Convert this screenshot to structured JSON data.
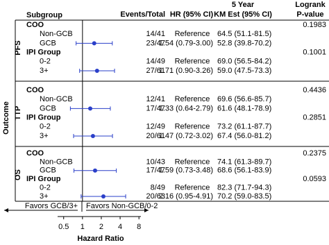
{
  "chart_data": {
    "type": "forest",
    "headers": {
      "subgroup": "Subgroup",
      "events": "Events/Total",
      "hr": "HR (95% CI)",
      "km_top": "5 Year",
      "km": "KM Est (95% CI)",
      "p_top": "Logrank",
      "p": "P-value"
    },
    "ylabel": "Outcome",
    "xlabel": "Hazard Ratio",
    "favors_left": "Favors GCB/3+",
    "favors_right": "Favors Non-GCB/0-2",
    "xlim": [
      0.4,
      8.6
    ],
    "xticks": [
      0.5,
      1,
      2,
      4,
      8
    ],
    "log_x": true,
    "reference": 1,
    "color": "#2a3fc9",
    "outcomes": [
      {
        "name": "PFS",
        "groups": [
          {
            "label": "COO",
            "p_value": 0.1983,
            "rows": [
              {
                "label": "Non-GCB",
                "events": "14/41",
                "hr_label": "Reference",
                "km": "64.5 (51.1-81.5)"
              },
              {
                "label": "GCB",
                "events": "23/47",
                "hr": 1.54,
                "ci_low": 0.79,
                "ci_high": 3.0,
                "hr_label": "1.54 (0.79-3.00)",
                "km": "52.8 (39.8-70.2)"
              }
            ]
          },
          {
            "label": "IPI Group",
            "p_value": 0.1001,
            "rows": [
              {
                "label": "0-2",
                "events": "14/49",
                "hr_label": "Reference",
                "km": "69.0 (56.5-84.2)"
              },
              {
                "label": "3+",
                "events": "27/61",
                "hr": 1.71,
                "ci_low": 0.9,
                "ci_high": 3.26,
                "hr_label": "1.71 (0.90-3.26)",
                "km": "59.0 (47.5-73.3)"
              }
            ]
          }
        ]
      },
      {
        "name": "TTP",
        "groups": [
          {
            "label": "COO",
            "p_value": 0.4436,
            "rows": [
              {
                "label": "Non-GCB",
                "events": "12/41",
                "hr_label": "Reference",
                "km": "69.6 (56.6-85.7)"
              },
              {
                "label": "GCB",
                "events": "17/47",
                "hr": 1.33,
                "ci_low": 0.64,
                "ci_high": 2.79,
                "hr_label": "1.33 (0.64-2.79)",
                "km": "61.6 (48.1-78.9)"
              }
            ]
          },
          {
            "label": "IPI Group",
            "p_value": 0.2851,
            "rows": [
              {
                "label": "0-2",
                "events": "12/49",
                "hr_label": "Reference",
                "km": "73.2 (61.1-87.7)"
              },
              {
                "label": "3+",
                "events": "20/61",
                "hr": 1.47,
                "ci_low": 0.72,
                "ci_high": 3.02,
                "hr_label": "1.47 (0.72-3.02)",
                "km": "67.4 (56.0-81.2)"
              }
            ]
          }
        ]
      },
      {
        "name": "OS",
        "groups": [
          {
            "label": "COO",
            "p_value": 0.2375,
            "rows": [
              {
                "label": "Non-GCB",
                "events": "10/43",
                "hr_label": "Reference",
                "km": "74.1 (61.3-89.7)"
              },
              {
                "label": "GCB",
                "events": "17/47",
                "hr": 1.59,
                "ci_low": 0.73,
                "ci_high": 3.48,
                "hr_label": "1.59 (0.73-3.48)",
                "km": "68.6 (56.1-83.9)"
              }
            ]
          },
          {
            "label": "IPI Group",
            "p_value": 0.0593,
            "rows": [
              {
                "label": "0-2",
                "events": "8/49",
                "hr_label": "Reference",
                "km": "82.3 (71.7-94.3)"
              },
              {
                "label": "3+",
                "events": "20/63",
                "hr": 2.16,
                "ci_low": 0.95,
                "ci_high": 4.91,
                "hr_label": "2.16 (0.95-4.91)",
                "km": "70.2 (59.0-83.5)"
              }
            ]
          }
        ]
      }
    ]
  }
}
